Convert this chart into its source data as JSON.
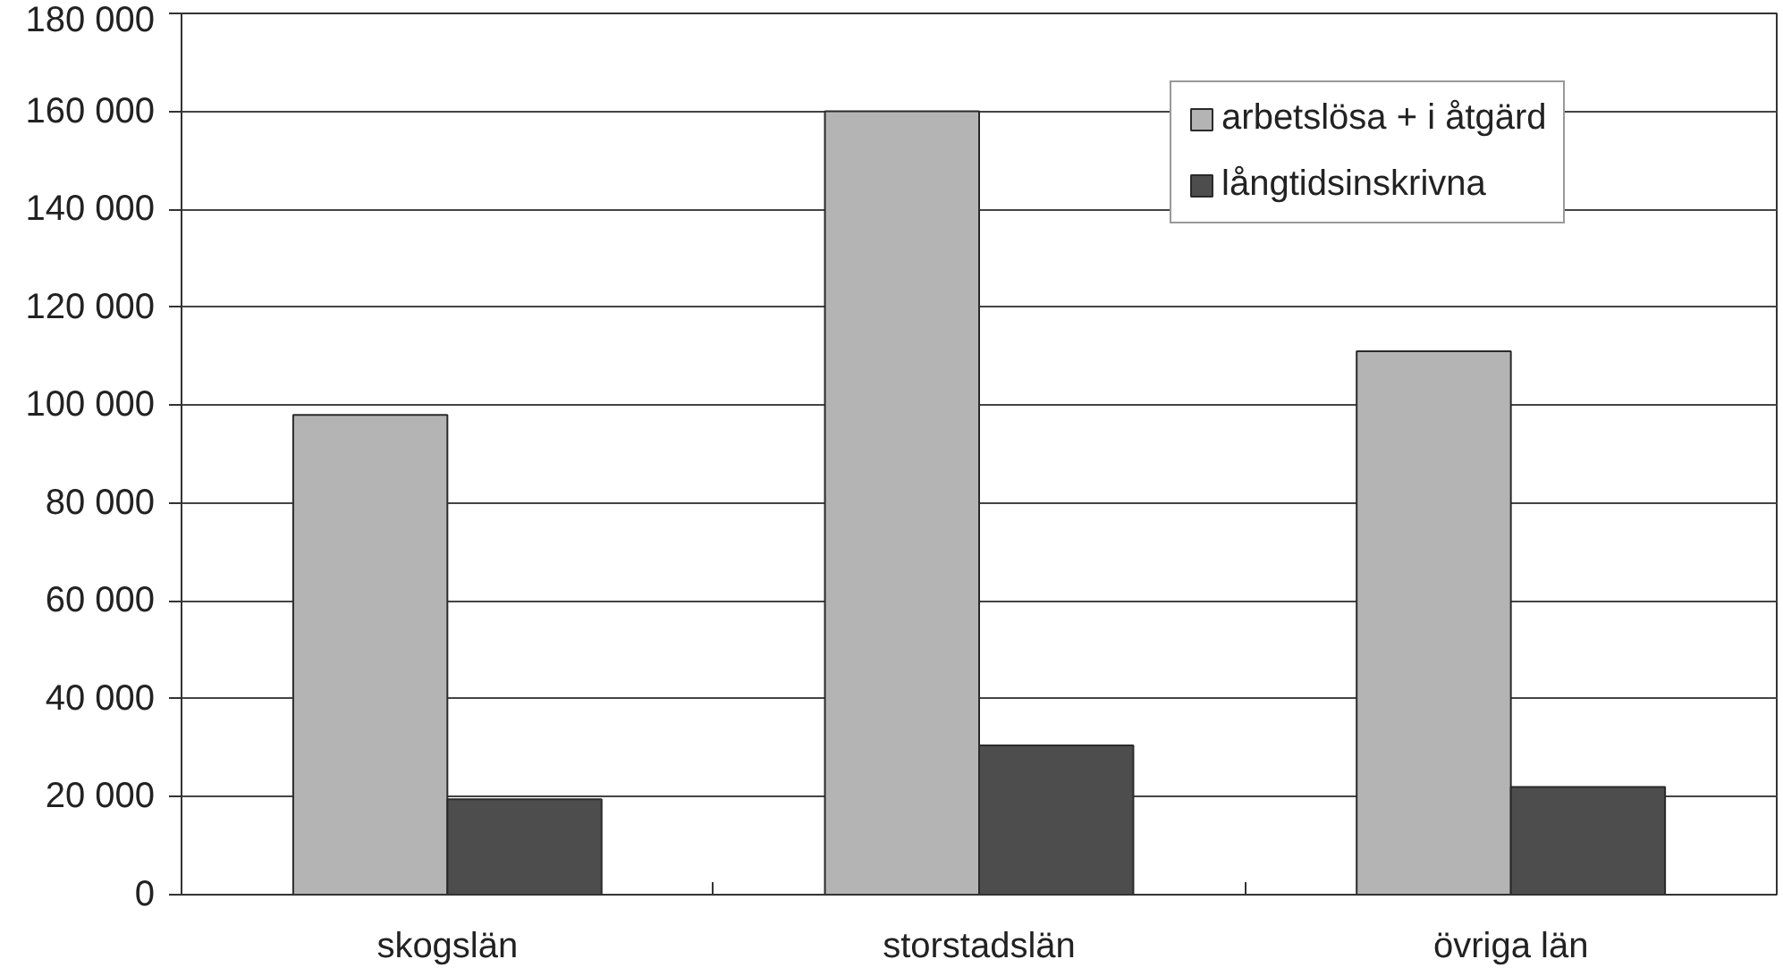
{
  "chart_data": {
    "type": "bar",
    "categories": [
      "skogslän",
      "storstadslän",
      "övriga län"
    ],
    "series": [
      {
        "name": "arbetslösa + i åtgärd",
        "color": "#b4b4b4",
        "values": [
          98000,
          160000,
          111000
        ]
      },
      {
        "name": "långtidsinskrivna",
        "color": "#4d4d4d",
        "values": [
          19500,
          30500,
          22000
        ]
      }
    ],
    "ylim": [
      0,
      180000
    ],
    "yticks": [
      {
        "value": 0,
        "label": "0"
      },
      {
        "value": 20000,
        "label": "20 000"
      },
      {
        "value": 40000,
        "label": "40 000"
      },
      {
        "value": 60000,
        "label": "60 000"
      },
      {
        "value": 80000,
        "label": "80 000"
      },
      {
        "value": 100000,
        "label": "100 000"
      },
      {
        "value": 120000,
        "label": "120 000"
      },
      {
        "value": 140000,
        "label": "140 000"
      },
      {
        "value": 160000,
        "label": "160 000"
      },
      {
        "value": 180000,
        "label": "180 000"
      }
    ],
    "grid": "y",
    "legend": "top right"
  }
}
